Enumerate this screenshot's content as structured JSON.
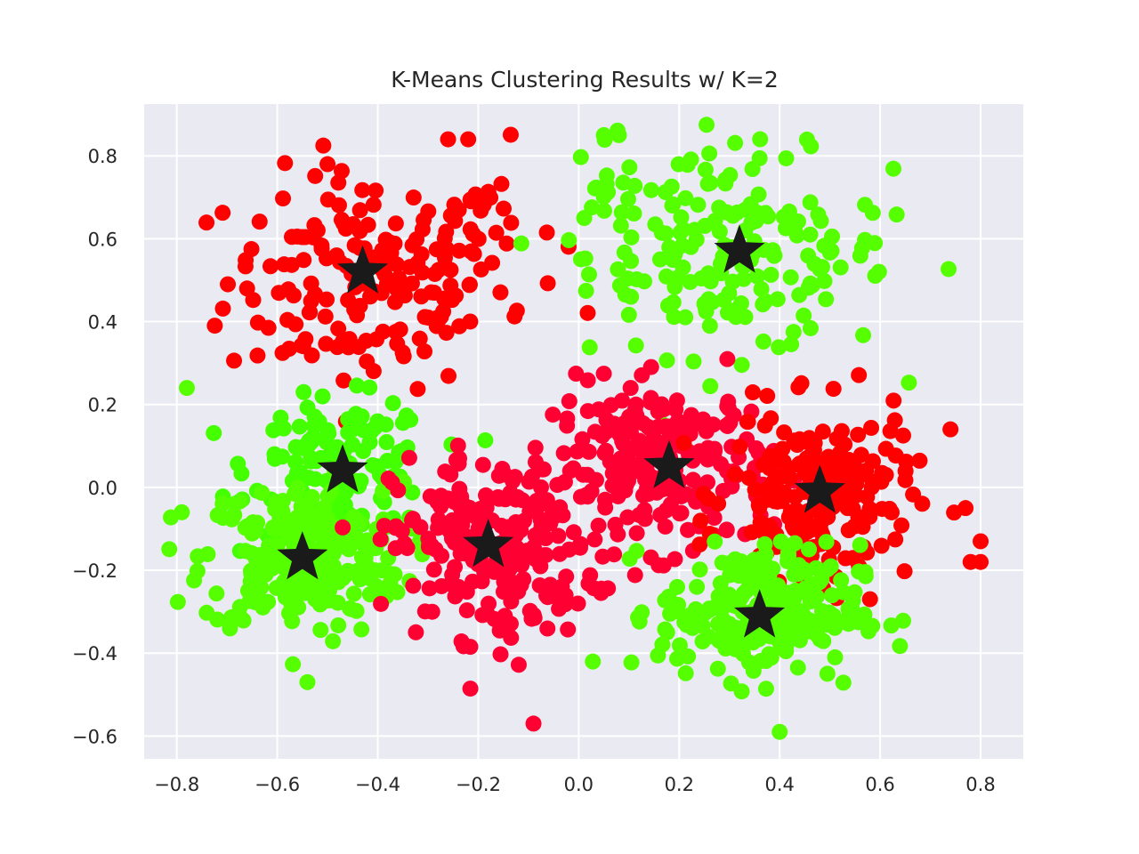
{
  "chart_data": {
    "type": "scatter",
    "title": "K-Means Clustering Results w/ K=2",
    "xlabel": "",
    "ylabel": "",
    "xlim": [
      -0.865,
      0.885
    ],
    "ylim": [
      -0.655,
      0.925
    ],
    "x_ticks": [
      -0.8,
      -0.6,
      -0.4,
      -0.2,
      0.0,
      0.2,
      0.4,
      0.6,
      0.8
    ],
    "y_ticks": [
      -0.6,
      -0.4,
      -0.2,
      0.0,
      0.2,
      0.4,
      0.6,
      0.8
    ],
    "grid": true,
    "legend": "none",
    "background_color": "#eaeaf2",
    "grid_color": "#ffffff",
    "centroid_color": "#1a1a1a",
    "centroid_marker": "star",
    "cluster_colors": {
      "red": "#ff0000",
      "crimson": "#ff0033",
      "lime": "#44ff00",
      "green": "#55ff00"
    },
    "centroids": [
      {
        "x": -0.43,
        "y": 0.52
      },
      {
        "x": 0.32,
        "y": 0.57
      },
      {
        "x": -0.47,
        "y": 0.04
      },
      {
        "x": -0.55,
        "y": -0.17
      },
      {
        "x": -0.18,
        "y": -0.14
      },
      {
        "x": 0.18,
        "y": 0.05
      },
      {
        "x": 0.48,
        "y": -0.01
      },
      {
        "x": 0.36,
        "y": -0.31
      }
    ],
    "clusters": [
      {
        "color": "#ff0000",
        "center": [
          -0.42,
          0.5
        ],
        "spread": [
          0.14,
          0.13
        ],
        "n": 170
      },
      {
        "color": "#ff0000",
        "center": [
          -0.2,
          0.62
        ],
        "spread": [
          0.08,
          0.1
        ],
        "n": 30
      },
      {
        "color": "#55ff00",
        "center": [
          0.32,
          0.56
        ],
        "spread": [
          0.15,
          0.12
        ],
        "n": 170
      },
      {
        "color": "#55ff00",
        "center": [
          0.1,
          0.65
        ],
        "spread": [
          0.1,
          0.1
        ],
        "n": 30
      },
      {
        "color": "#44ff00",
        "center": [
          -0.47,
          0.05
        ],
        "spread": [
          0.09,
          0.08
        ],
        "n": 140
      },
      {
        "color": "#55ff00",
        "center": [
          -0.55,
          -0.17
        ],
        "spread": [
          0.1,
          0.09
        ],
        "n": 240
      },
      {
        "color": "#ff0033",
        "center": [
          -0.17,
          -0.14
        ],
        "spread": [
          0.1,
          0.11
        ],
        "n": 230
      },
      {
        "color": "#ff0033",
        "center": [
          0.17,
          0.05
        ],
        "spread": [
          0.11,
          0.1
        ],
        "n": 230
      },
      {
        "color": "#ff0000",
        "center": [
          0.48,
          -0.02
        ],
        "spread": [
          0.09,
          0.1
        ],
        "n": 200
      },
      {
        "color": "#55ff00",
        "center": [
          0.36,
          -0.3
        ],
        "spread": [
          0.1,
          0.08
        ],
        "n": 240
      }
    ],
    "outliers": [
      {
        "x": 0.8,
        "y": -0.13,
        "color": "#ff0000"
      },
      {
        "x": 0.78,
        "y": -0.18,
        "color": "#ff0000"
      },
      {
        "x": 0.8,
        "y": -0.18,
        "color": "#ff0000"
      },
      {
        "x": 0.74,
        "y": 0.14,
        "color": "#ff0000"
      },
      {
        "x": 0.77,
        "y": -0.05,
        "color": "#ff0000"
      },
      {
        "x": -0.09,
        "y": -0.57,
        "color": "#ff0033"
      },
      {
        "x": -0.79,
        "y": -0.06,
        "color": "#55ff00"
      },
      {
        "x": -0.78,
        "y": 0.24,
        "color": "#55ff00"
      },
      {
        "x": 0.05,
        "y": 0.85,
        "color": "#55ff00"
      },
      {
        "x": 0.08,
        "y": 0.85,
        "color": "#55ff00"
      },
      {
        "x": 0.4,
        "y": -0.59,
        "color": "#55ff00"
      },
      {
        "x": -0.54,
        "y": -0.47,
        "color": "#55ff00"
      },
      {
        "x": -0.5,
        "y": 0.78,
        "color": "#ff0000"
      },
      {
        "x": -0.26,
        "y": 0.84,
        "color": "#ff0000"
      },
      {
        "x": -0.22,
        "y": 0.84,
        "color": "#ff0000"
      }
    ]
  }
}
